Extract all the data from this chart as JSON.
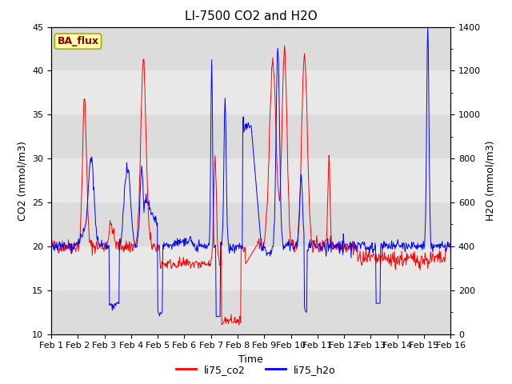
{
  "title": "LI-7500 CO2 and H2O",
  "xlabel": "Time",
  "ylabel_left": "CO2 (mmol/m3)",
  "ylabel_right": "H2O (mmol/m3)",
  "ylim_left": [
    10,
    45
  ],
  "ylim_right": [
    0,
    1400
  ],
  "xtick_labels": [
    "Feb 1",
    "Feb 2",
    "Feb 3",
    "Feb 4",
    "Feb 5",
    "Feb 6",
    "Feb 7",
    "Feb 8",
    "Feb 9",
    "Feb 10",
    "Feb 11",
    "Feb 12",
    "Feb 13",
    "Feb 14",
    "Feb 15",
    "Feb 16"
  ],
  "legend_labels": [
    "li75_co2",
    "li75_h2o"
  ],
  "badge_text": "BA_flux",
  "badge_facecolor": "#FFFFAA",
  "badge_edgecolor": "#AAAA00",
  "badge_textcolor": "#8B0000",
  "background_color": "#E8E8E8",
  "band_color_light": "#EBEBEB",
  "band_color_dark": "#D8D8D8",
  "title_fontsize": 11,
  "axis_label_fontsize": 9,
  "tick_label_fontsize": 8
}
